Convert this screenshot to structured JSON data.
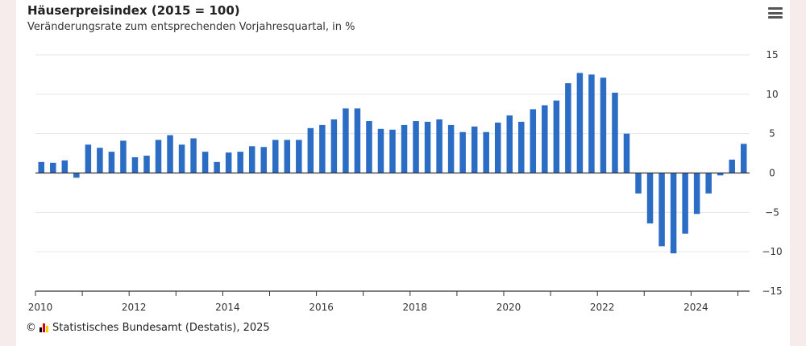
{
  "chart_data": {
    "type": "bar",
    "title": "Häuserpreisindex (2015 = 100)",
    "subtitle": "Veränderungsrate zum entsprechenden Vorjahresquartal, in %",
    "ylim": [
      -15,
      15
    ],
    "yticks": [
      15,
      10,
      5,
      0,
      -5,
      -10,
      -15
    ],
    "year_labels": [
      "2010",
      "2012",
      "2014",
      "2016",
      "2018",
      "2020",
      "2022",
      "2024"
    ],
    "grid": true,
    "bar_color": "#2b6cc4",
    "series": [
      {
        "values": [
          1.4,
          1.3,
          1.6,
          -0.6,
          3.6,
          3.2,
          2.7,
          4.1,
          2.0,
          2.2,
          4.2,
          4.8,
          3.6,
          4.4,
          2.7,
          1.4,
          2.6,
          2.7,
          3.4,
          3.3,
          4.2,
          4.2,
          4.2,
          5.7,
          6.1,
          6.8,
          8.2,
          8.2,
          6.6,
          5.6,
          5.5,
          6.1,
          6.6,
          6.5,
          6.8,
          6.1,
          5.2,
          5.9,
          5.2,
          6.4,
          7.3,
          6.5,
          8.1,
          8.6,
          9.2,
          11.4,
          12.7,
          12.5,
          12.1,
          10.2,
          5.0,
          -2.6,
          -6.4,
          -9.3,
          -10.2,
          -7.7,
          -5.2,
          -2.6,
          -0.3,
          1.7,
          3.7
        ]
      }
    ]
  },
  "footer": {
    "copyright_symbol": "©",
    "credit": "Statistisches Bundesamt (Destatis), 2025"
  },
  "colors": {
    "bar": "#2b6cc4",
    "grid": "#e6e6e6",
    "axis": "#333333",
    "logo": [
      "#000000",
      "#dd0000",
      "#ffcc00"
    ]
  }
}
